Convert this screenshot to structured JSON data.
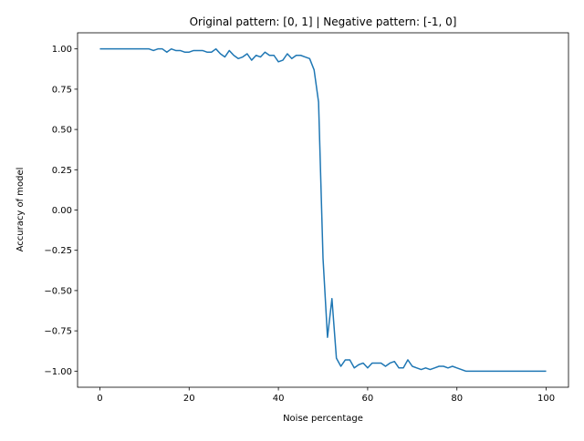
{
  "chart_data": {
    "type": "line",
    "title": "Original pattern: [0, 1] | Negative pattern: [-1, 0]",
    "xlabel": "Noise percentage",
    "ylabel": "Accuracy of model",
    "xlim": [
      -5,
      105
    ],
    "ylim": [
      -1.1,
      1.1
    ],
    "x_ticks": [
      0,
      20,
      40,
      60,
      80,
      100
    ],
    "x_tick_labels": [
      "0",
      "20",
      "40",
      "60",
      "80",
      "100"
    ],
    "y_ticks": [
      1.0,
      0.75,
      0.5,
      0.25,
      0.0,
      -0.25,
      -0.5,
      -0.75,
      -1.0
    ],
    "y_tick_labels": [
      "1.00",
      "0.75",
      "0.50",
      "0.25",
      "0.00",
      "−0.25",
      "−0.50",
      "−0.75",
      "−1.00"
    ],
    "grid": false,
    "legend": "none",
    "line_color": "#1f77b4",
    "series": [
      {
        "x": [
          0,
          1,
          2,
          3,
          4,
          5,
          6,
          7,
          8,
          9,
          10,
          11,
          12,
          13,
          14,
          15,
          16,
          17,
          18,
          19,
          20,
          21,
          22,
          23,
          24,
          25,
          26,
          27,
          28,
          29,
          30,
          31,
          32,
          33,
          34,
          35,
          36,
          37,
          38,
          39,
          40,
          41,
          42,
          43,
          44,
          45,
          46,
          47,
          48,
          49,
          50,
          51,
          52,
          53,
          54,
          55,
          56,
          57,
          58,
          59,
          60,
          61,
          62,
          63,
          64,
          65,
          66,
          67,
          68,
          69,
          70,
          71,
          72,
          73,
          74,
          75,
          76,
          77,
          78,
          79,
          80,
          81,
          82,
          83,
          84,
          85,
          86,
          87,
          88,
          89,
          90,
          91,
          92,
          93,
          94,
          95,
          96,
          97,
          98,
          99,
          100
        ],
        "values": [
          1.0,
          1.0,
          1.0,
          1.0,
          1.0,
          1.0,
          1.0,
          1.0,
          1.0,
          1.0,
          1.0,
          1.0,
          0.99,
          1.0,
          1.0,
          0.98,
          1.0,
          0.99,
          0.99,
          0.98,
          0.98,
          0.99,
          0.99,
          0.99,
          0.98,
          0.98,
          1.0,
          0.97,
          0.95,
          0.99,
          0.96,
          0.94,
          0.95,
          0.97,
          0.93,
          0.96,
          0.95,
          0.98,
          0.96,
          0.96,
          0.92,
          0.93,
          0.97,
          0.94,
          0.96,
          0.96,
          0.95,
          0.94,
          0.87,
          0.67,
          -0.3,
          -0.79,
          -0.55,
          -0.92,
          -0.97,
          -0.93,
          -0.93,
          -0.98,
          -0.96,
          -0.95,
          -0.98,
          -0.95,
          -0.95,
          -0.95,
          -0.97,
          -0.95,
          -0.94,
          -0.98,
          -0.98,
          -0.93,
          -0.97,
          -0.98,
          -0.99,
          -0.98,
          -0.99,
          -0.98,
          -0.97,
          -0.97,
          -0.98,
          -0.97,
          -0.98,
          -0.99,
          -1.0,
          -1.0,
          -1.0,
          -1.0,
          -1.0,
          -1.0,
          -1.0,
          -1.0,
          -1.0,
          -1.0,
          -1.0,
          -1.0,
          -1.0,
          -1.0,
          -1.0,
          -1.0,
          -1.0,
          -1.0,
          -1.0
        ]
      }
    ]
  }
}
